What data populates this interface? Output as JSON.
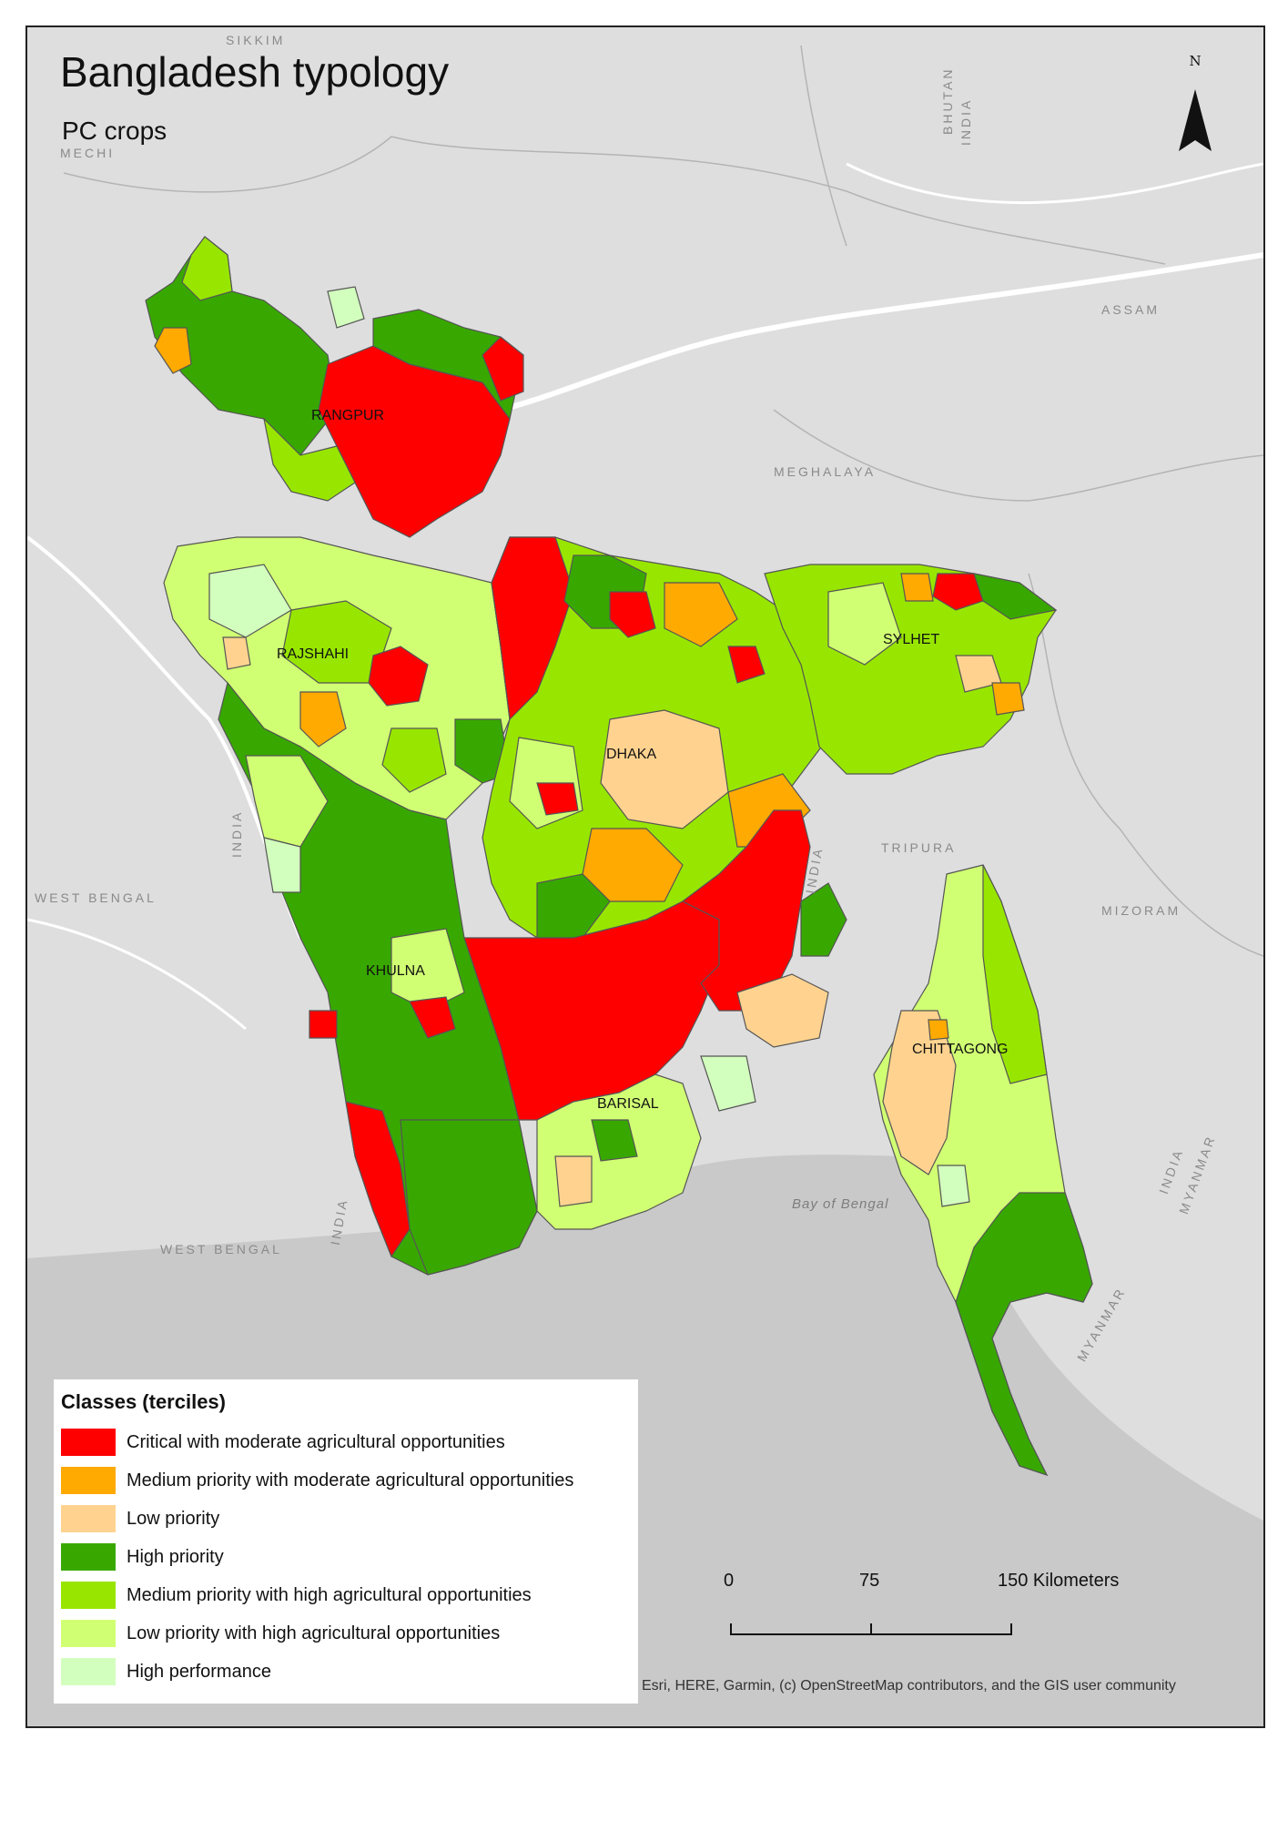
{
  "title": "Bangladesh typology",
  "subtitle": "PC crops",
  "north_label": "N",
  "places": {
    "sikkim": "SIKKIM",
    "mechi": "MECHI",
    "bhutan": "BHUTAN",
    "india_top": "INDIA",
    "assam": "ASSAM",
    "meghalaya": "MEGHALAYA",
    "tripura": "TRIPURA",
    "india_mid": "INDIA",
    "mizoram": "MIZORAM",
    "west_bengal_1": "WEST BENGAL",
    "india_west": "INDIA",
    "west_bengal_2": "WEST BENGAL",
    "india_sw": "INDIA",
    "india_se": "INDIA",
    "myanmar_1": "MYANMAR",
    "myanmar_2": "MYANMAR",
    "bay": "Bay of Bengal"
  },
  "divisions": {
    "rangpur": "RANGPUR",
    "rajshahi": "RAJSHAHI",
    "sylhet": "SYLHET",
    "dhaka": "DHAKA",
    "khulna": "KHULNA",
    "barisal": "BARISAL",
    "chittagong": "CHITTAGONG"
  },
  "legend": {
    "title": "Classes (terciles)",
    "items": [
      {
        "label": "Critical with moderate agricultural opportunities",
        "color": "#ff0000"
      },
      {
        "label": "Medium priority with moderate agricultural opportunities",
        "color": "#ffaa00"
      },
      {
        "label": "Low priority",
        "color": "#ffd38f"
      },
      {
        "label": "High priority",
        "color": "#38a800"
      },
      {
        "label": "Medium priority with high agricultural opportunities",
        "color": "#98e600"
      },
      {
        "label": "Low priority with high agricultural opportunities",
        "color": "#d1ff73"
      },
      {
        "label": "High performance",
        "color": "#d3ffbe"
      }
    ]
  },
  "scale": {
    "ticks": [
      "0",
      "75",
      "150 Kilometers"
    ]
  },
  "attribution": "Esri, HERE, Garmin, (c) OpenStreetMap contributors, and the GIS user community",
  "colors": {
    "land_background": "#dedede",
    "sea": "#c9c9c9"
  }
}
